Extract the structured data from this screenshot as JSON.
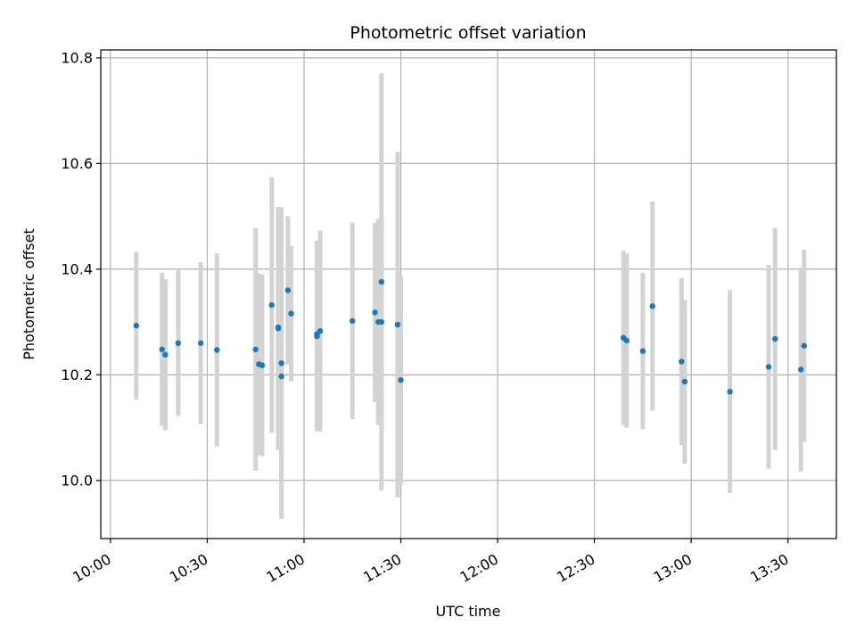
{
  "chart_data": {
    "type": "scatter",
    "title": "Photometric offset variation",
    "xlabel": "UTC time",
    "ylabel": "Photometric offset",
    "x_ticks": [
      "10:00",
      "10:30",
      "11:00",
      "11:30",
      "12:00",
      "12:30",
      "13:00",
      "13:30"
    ],
    "y_ticks": [
      "10.0",
      "10.2",
      "10.4",
      "10.6",
      "10.8"
    ],
    "xlim": [
      "09:57",
      "13:45"
    ],
    "ylim": [
      9.89,
      10.815
    ],
    "grid": true,
    "colors": {
      "points": "#1f77b4",
      "error_bars": "#d3d3d3",
      "grid": "#b0b0b0"
    },
    "points": [
      {
        "x": "10:08",
        "y": 10.293,
        "err": 0.14
      },
      {
        "x": "10:16",
        "y": 10.248,
        "err": 0.145
      },
      {
        "x": "10:17",
        "y": 10.238,
        "err": 0.143
      },
      {
        "x": "10:21",
        "y": 10.26,
        "err": 0.138
      },
      {
        "x": "10:28",
        "y": 10.26,
        "err": 0.153
      },
      {
        "x": "10:33",
        "y": 10.247,
        "err": 0.183
      },
      {
        "x": "10:45",
        "y": 10.248,
        "err": 0.23
      },
      {
        "x": "10:46",
        "y": 10.22,
        "err": 0.172
      },
      {
        "x": "10:47",
        "y": 10.218,
        "err": 0.172
      },
      {
        "x": "10:50",
        "y": 10.332,
        "err": 0.242
      },
      {
        "x": "10:52",
        "y": 10.288,
        "err": 0.23
      },
      {
        "x": "10:52",
        "y": 10.29,
        "err": 0.228
      },
      {
        "x": "10:53",
        "y": 10.197,
        "err": 0.2
      },
      {
        "x": "10:53",
        "y": 10.222,
        "err": 0.295
      },
      {
        "x": "10:55",
        "y": 10.36,
        "err": 0.14
      },
      {
        "x": "10:56",
        "y": 10.316,
        "err": 0.128
      },
      {
        "x": "11:04",
        "y": 10.277,
        "err": 0.177
      },
      {
        "x": "11:04",
        "y": 10.273,
        "err": 0.18
      },
      {
        "x": "11:05",
        "y": 10.283,
        "err": 0.19
      },
      {
        "x": "11:15",
        "y": 10.302,
        "err": 0.186
      },
      {
        "x": "11:22",
        "y": 10.318,
        "err": 0.17
      },
      {
        "x": "11:23",
        "y": 10.3,
        "err": 0.195
      },
      {
        "x": "11:24",
        "y": 10.3,
        "err": 0.195
      },
      {
        "x": "11:24",
        "y": 10.376,
        "err": 0.395
      },
      {
        "x": "11:29",
        "y": 10.295,
        "err": 0.327
      },
      {
        "x": "11:30",
        "y": 10.19,
        "err": 0.198
      },
      {
        "x": "12:39",
        "y": 10.27,
        "err": 0.165
      },
      {
        "x": "12:40",
        "y": 10.265,
        "err": 0.165
      },
      {
        "x": "12:45",
        "y": 10.245,
        "err": 0.148
      },
      {
        "x": "12:48",
        "y": 10.33,
        "err": 0.198
      },
      {
        "x": "12:57",
        "y": 10.225,
        "err": 0.158
      },
      {
        "x": "12:58",
        "y": 10.187,
        "err": 0.155
      },
      {
        "x": "13:12",
        "y": 10.168,
        "err": 0.192
      },
      {
        "x": "13:24",
        "y": 10.215,
        "err": 0.193
      },
      {
        "x": "13:26",
        "y": 10.268,
        "err": 0.21
      },
      {
        "x": "13:34",
        "y": 10.21,
        "err": 0.193
      },
      {
        "x": "13:35",
        "y": 10.255,
        "err": 0.182
      }
    ]
  }
}
